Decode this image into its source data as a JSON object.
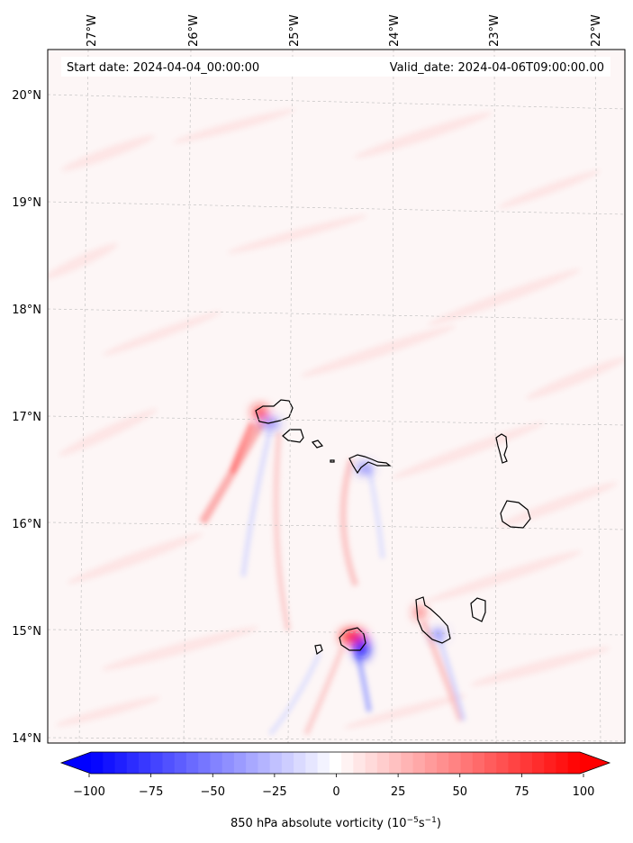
{
  "map": {
    "start_date": "Start date: 2024-04-04_00:00:00",
    "valid_date": "Valid_date: 2024-04-06T09:00:00.00",
    "lon_labels": [
      "27°W",
      "26°W",
      "25°W",
      "24°W",
      "23°W",
      "22°W"
    ],
    "lat_labels": [
      "20°N",
      "19°N",
      "18°N",
      "17°N",
      "16°N",
      "15°N",
      "14°N"
    ],
    "field_colors": {
      "background": "#fdf6f6",
      "positive": "#ff0000",
      "negative": "#0000ff",
      "coast": "#000000"
    }
  },
  "colorbar": {
    "label_text": "850 hPa absolute vorticity (10",
    "label_exp1": "−5",
    "label_mid": "s",
    "label_exp2": "−1",
    "label_end": ")",
    "tick_labels": [
      "−100",
      "−75",
      "−50",
      "−25",
      "0",
      "25",
      "50",
      "75",
      "100"
    ],
    "ticks": [
      -100,
      -75,
      -50,
      -25,
      0,
      25,
      50,
      75,
      100
    ],
    "min": -100,
    "max": 100,
    "levels": 41,
    "colormap": "bwr"
  }
}
